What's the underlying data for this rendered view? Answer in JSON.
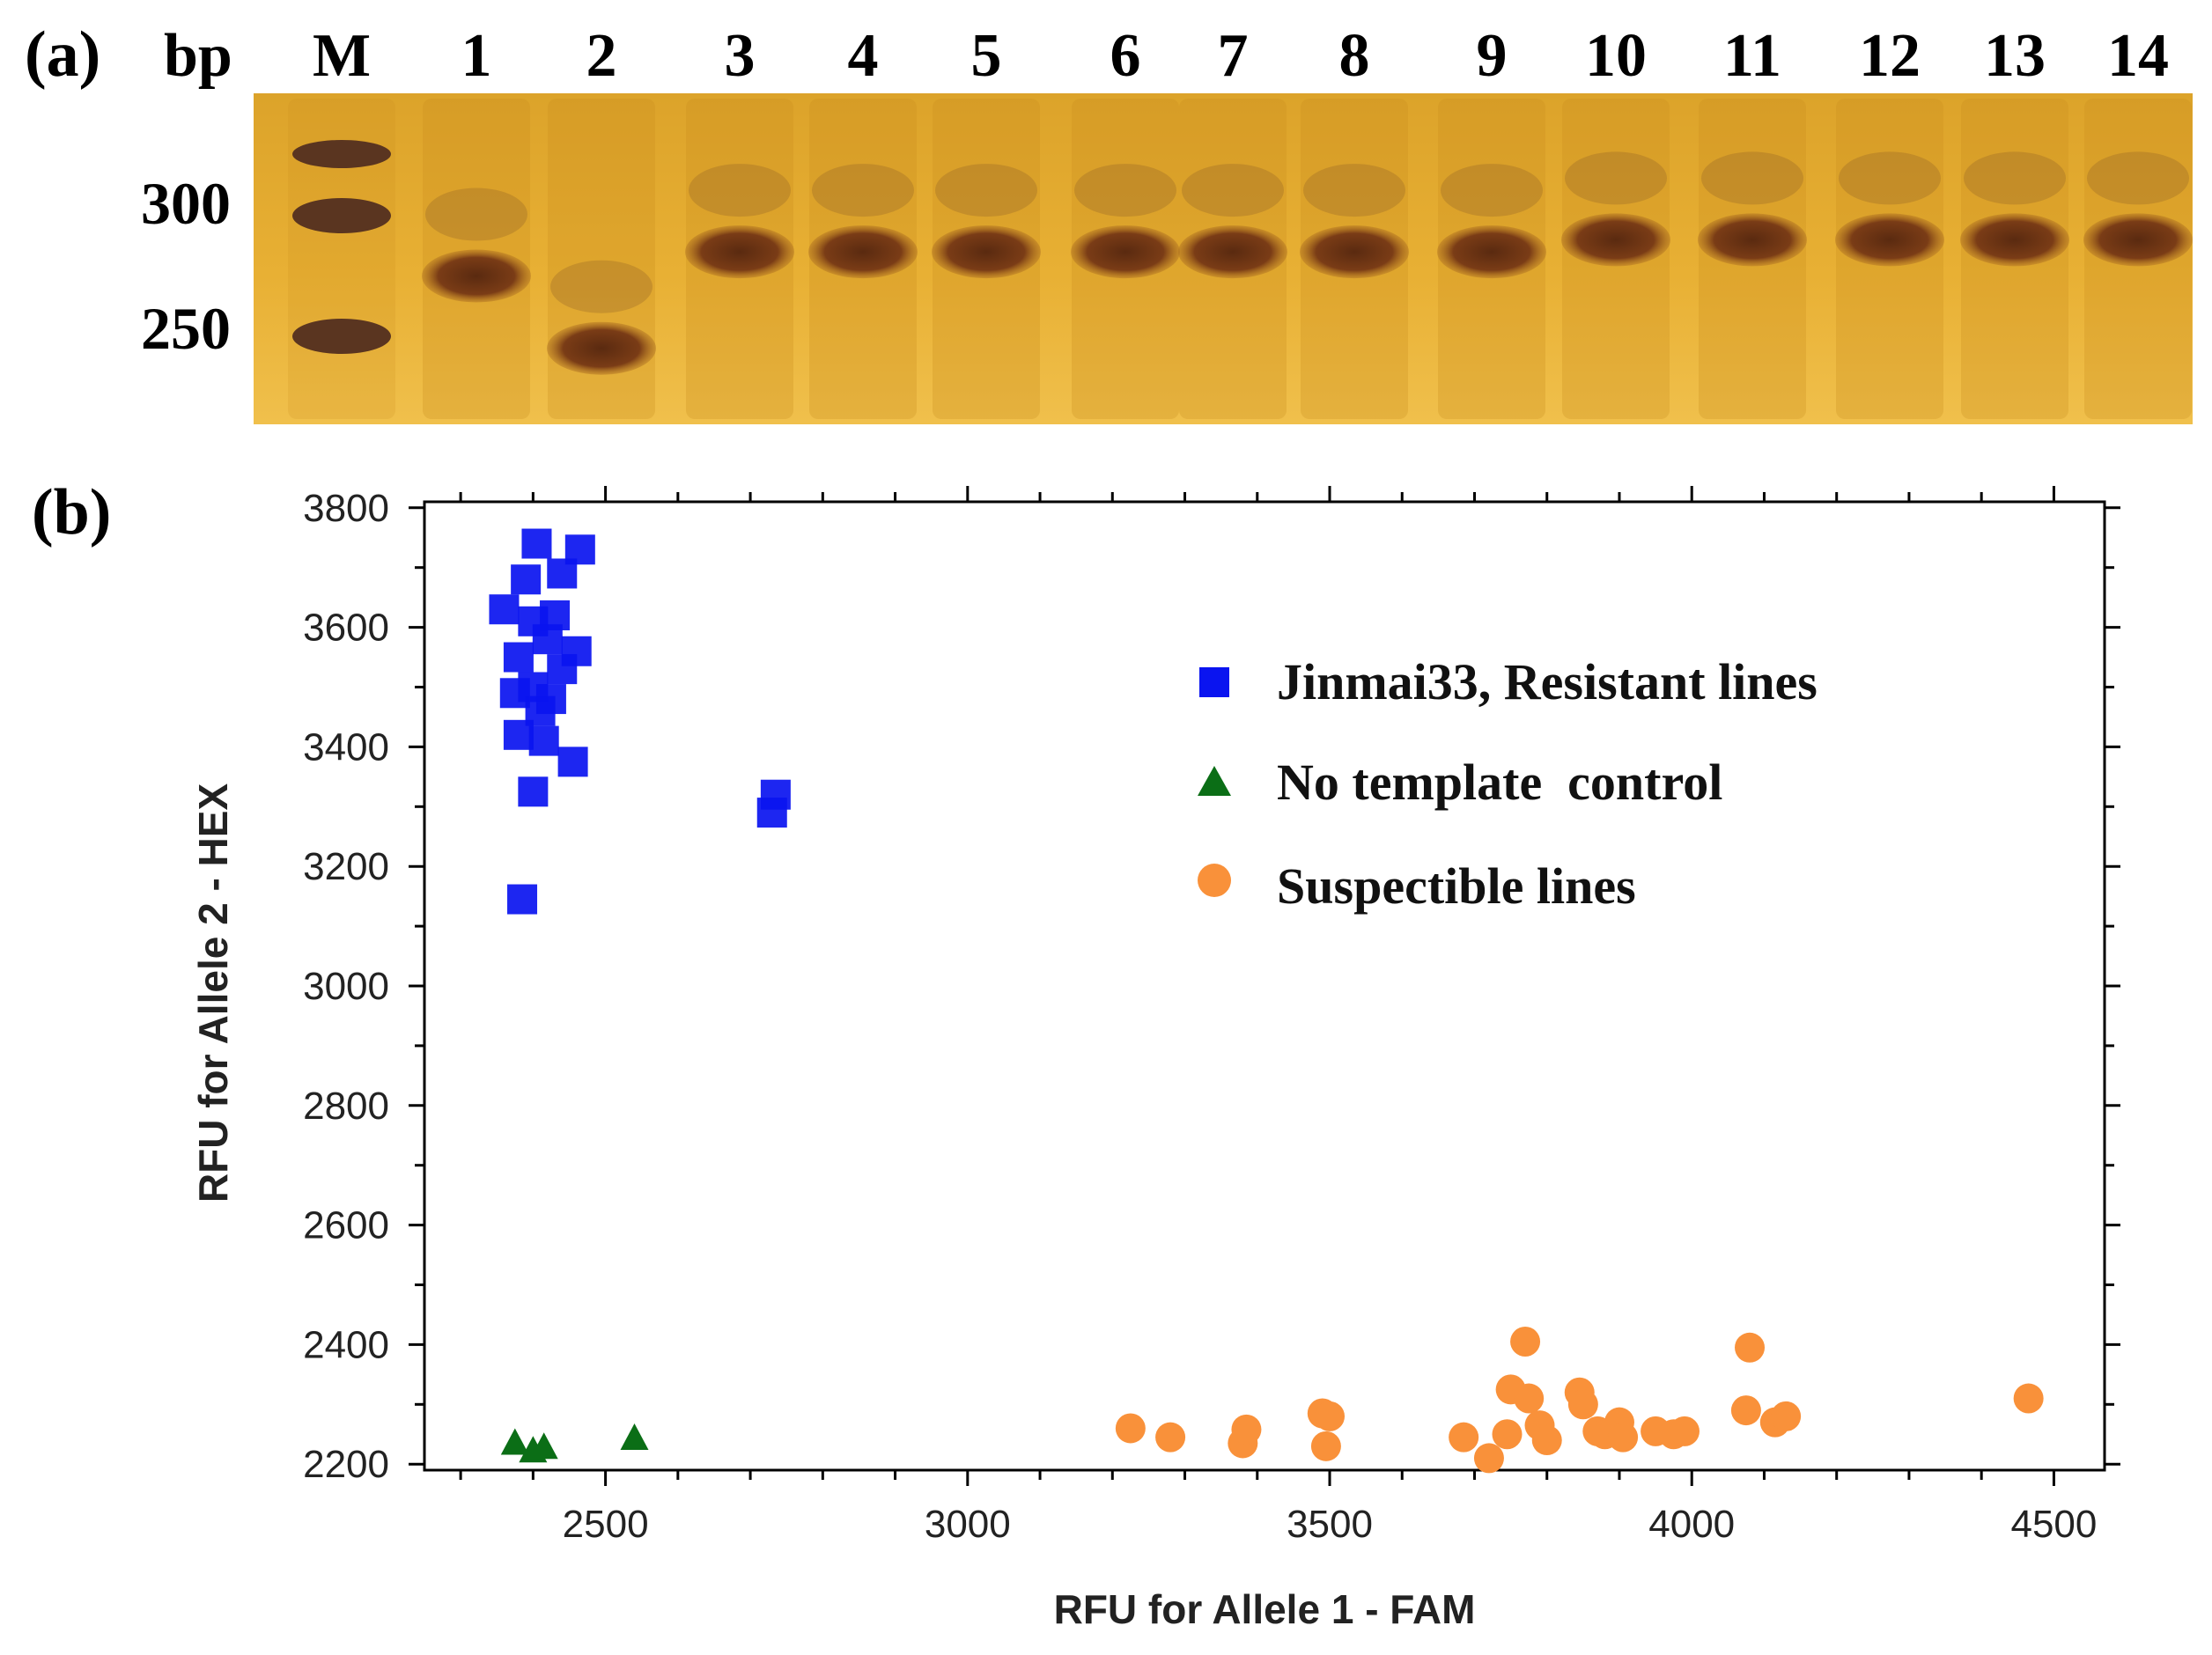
{
  "panel_a": {
    "label": "(a)",
    "bp_label": "bp",
    "size_labels": [
      "300",
      "250"
    ],
    "lane_labels": [
      "M",
      "1",
      "2",
      "3",
      "4",
      "5",
      "6",
      "7",
      "8",
      "9",
      "10",
      "11",
      "12",
      "13",
      "14"
    ],
    "band_sizes_bp": [
      null,
      275,
      245,
      285,
      285,
      285,
      285,
      285,
      285,
      285,
      290,
      290,
      290,
      290,
      290
    ],
    "colors": {
      "gel_base": "#e2a52a",
      "gel_light": "#efc04a",
      "band": "#6b3416",
      "marker": "#5a3520"
    }
  },
  "panel_b": {
    "label": "(b)"
  },
  "chart_data": {
    "type": "scatter",
    "title": "",
    "xlabel": "RFU for Allele 1 - FAM",
    "ylabel": "RFU for Allele 2 - HEX",
    "xlim": [
      2250,
      4570
    ],
    "ylim": [
      2190,
      3810
    ],
    "xticks": [
      2500,
      3000,
      3500,
      4000,
      4500
    ],
    "yticks": [
      2200,
      2400,
      2600,
      2800,
      3000,
      3200,
      3400,
      3600,
      3800
    ],
    "grid": false,
    "legend_position": "top-right",
    "series": [
      {
        "name": "Jinmai33, Resistant lines",
        "marker": "square",
        "color": "#0a14f0",
        "points": [
          [
            2405,
            3740
          ],
          [
            2465,
            3730
          ],
          [
            2440,
            3690
          ],
          [
            2390,
            3680
          ],
          [
            2360,
            3630
          ],
          [
            2430,
            3620
          ],
          [
            2400,
            3610
          ],
          [
            2420,
            3580
          ],
          [
            2460,
            3560
          ],
          [
            2380,
            3550
          ],
          [
            2440,
            3530
          ],
          [
            2400,
            3500
          ],
          [
            2375,
            3490
          ],
          [
            2425,
            3480
          ],
          [
            2410,
            3460
          ],
          [
            2380,
            3420
          ],
          [
            2415,
            3410
          ],
          [
            2455,
            3375
          ],
          [
            2400,
            3325
          ],
          [
            2735,
            3320
          ],
          [
            2730,
            3290
          ],
          [
            2385,
            3145
          ]
        ]
      },
      {
        "name": "No template  control",
        "marker": "triangle",
        "color": "#0b6e16",
        "points": [
          [
            2375,
            2235
          ],
          [
            2400,
            2222
          ],
          [
            2415,
            2228
          ],
          [
            2540,
            2243
          ]
        ]
      },
      {
        "name": "Suspectible lines",
        "marker": "circle",
        "color": "#f9913a",
        "points": [
          [
            3225,
            2260
          ],
          [
            3280,
            2245
          ],
          [
            3380,
            2235
          ],
          [
            3385,
            2258
          ],
          [
            3490,
            2285
          ],
          [
            3500,
            2280
          ],
          [
            3495,
            2230
          ],
          [
            3685,
            2245
          ],
          [
            3720,
            2210
          ],
          [
            3745,
            2250
          ],
          [
            3750,
            2325
          ],
          [
            3770,
            2405
          ],
          [
            3775,
            2310
          ],
          [
            3790,
            2265
          ],
          [
            3800,
            2240
          ],
          [
            3845,
            2320
          ],
          [
            3850,
            2300
          ],
          [
            3870,
            2255
          ],
          [
            3880,
            2250
          ],
          [
            3900,
            2270
          ],
          [
            3905,
            2245
          ],
          [
            3950,
            2255
          ],
          [
            3975,
            2250
          ],
          [
            3990,
            2255
          ],
          [
            4080,
            2395
          ],
          [
            4075,
            2290
          ],
          [
            4115,
            2270
          ],
          [
            4130,
            2280
          ],
          [
            4465,
            2310
          ]
        ]
      }
    ]
  }
}
